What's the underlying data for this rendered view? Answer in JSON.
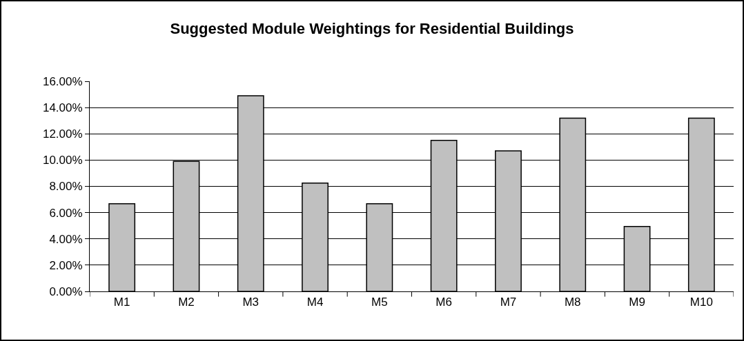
{
  "chart_data": {
    "type": "bar",
    "title": "Suggested Module Weightings for Residential Buildings",
    "categories": [
      "M1",
      "M2",
      "M3",
      "M4",
      "M5",
      "M6",
      "M7",
      "M8",
      "M9",
      "M10"
    ],
    "values": [
      6.67,
      9.9,
      14.9,
      8.25,
      6.67,
      11.5,
      10.7,
      13.2,
      4.95,
      13.2
    ],
    "color": "#c0c0c0",
    "ylim": [
      0,
      16
    ],
    "yticks": [
      {
        "value": 0,
        "label": "0.00%"
      },
      {
        "value": 2,
        "label": "2.00%"
      },
      {
        "value": 4,
        "label": "4.00%"
      },
      {
        "value": 6,
        "label": "6.00%"
      },
      {
        "value": 8,
        "label": "8.00%"
      },
      {
        "value": 10,
        "label": "10.00%"
      },
      {
        "value": 12,
        "label": "12.00%"
      },
      {
        "value": 14,
        "label": "14.00%"
      },
      {
        "value": 16,
        "label": "16.00%"
      }
    ],
    "grid": "y",
    "legend": false
  }
}
